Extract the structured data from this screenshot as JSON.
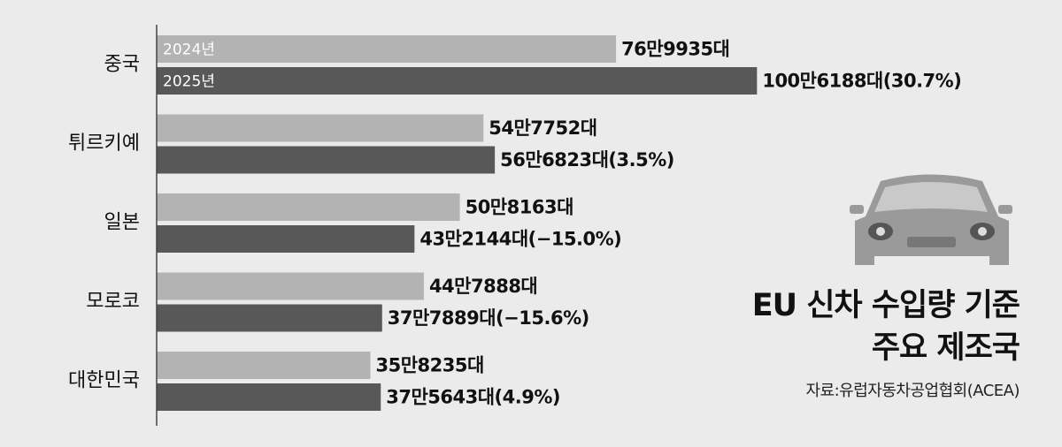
{
  "chart_data": {
    "type": "hbar",
    "title": "EU 신차 수입량 기준\n주요 제조국",
    "source": "자료:유럽자동차공업협회(ACEA)",
    "categories": [
      "중국",
      "튀르키예",
      "일본",
      "모로코",
      "대한민국"
    ],
    "series": [
      {
        "name": "2024년",
        "color": "#b3b3b3",
        "values": [
          769935,
          547752,
          508163,
          447888,
          358235
        ],
        "value_labels": [
          "76만9935대",
          "54만7752대",
          "50만8163대",
          "44만7888대",
          "35만8235대"
        ]
      },
      {
        "name": "2025년",
        "color": "#585858",
        "values": [
          1006188,
          566823,
          432144,
          377889,
          375643
        ],
        "value_labels": [
          "100만6188대(30.7%)",
          "56만6823대(3.5%)",
          "43만2144대(−15.0%)",
          "37만7889대(−15.6%)",
          "37만5643대(4.9%)"
        ]
      }
    ],
    "xlim": [
      0,
      1200000
    ]
  }
}
